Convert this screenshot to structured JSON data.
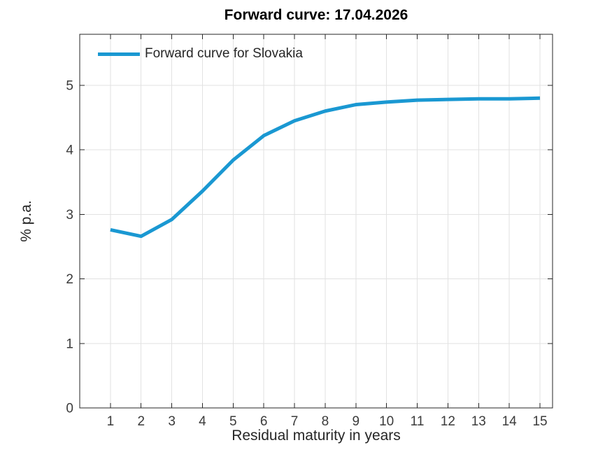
{
  "figure": {
    "title": "Forward curve: 17.04.2026",
    "xlabel": "Residual maturity in years",
    "ylabel": "% p.a.",
    "legend": {
      "label": "Forward curve for Slovakia"
    }
  },
  "colors": {
    "curve": "#1A98D2",
    "grid": "#E2E2E2",
    "axis": "#262626",
    "tick_text": "#3B3B3B",
    "background": "#FFFFFF"
  },
  "chart_data": {
    "type": "line",
    "title": "Forward curve: 17.04.2026",
    "xlabel": "Residual maturity in years",
    "ylabel": "% p.a.",
    "legend_entries": [
      "Forward curve for Slovakia"
    ],
    "legend_position": "top-left-inside",
    "legend_box": false,
    "grid": true,
    "x": [
      1,
      2,
      3,
      4,
      5,
      6,
      7,
      8,
      9,
      10,
      11,
      12,
      13,
      14,
      15
    ],
    "y": [
      2.76,
      2.66,
      2.92,
      3.36,
      3.84,
      4.22,
      4.45,
      4.6,
      4.7,
      4.74,
      4.77,
      4.78,
      4.79,
      4.79,
      4.8
    ],
    "xticks": [
      1,
      2,
      3,
      4,
      5,
      6,
      7,
      8,
      9,
      10,
      11,
      12,
      13,
      14,
      15
    ],
    "yticks": [
      0,
      1,
      2,
      3,
      4,
      5
    ],
    "xlim": [
      0,
      15.41
    ],
    "ylim": [
      0,
      5.79
    ],
    "line_width": 5
  }
}
